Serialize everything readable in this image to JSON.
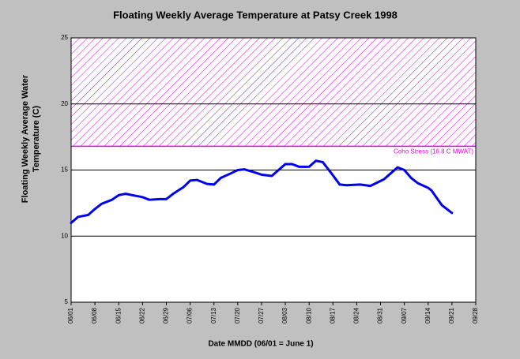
{
  "chart_data": {
    "type": "line",
    "title": "Floating Weekly Average Temperature at Patsy Creek 1998",
    "y_label": [
      "Floating Weekly Average Water",
      "Temperature (C)"
    ],
    "x_label": "Date MMDD (06/01 = June 1)",
    "x": [
      0,
      2,
      5,
      7,
      9,
      12,
      14,
      16,
      19,
      21,
      23,
      26,
      28,
      30,
      33,
      35,
      37,
      40,
      42,
      44,
      47,
      49,
      51,
      53,
      56,
      59,
      63,
      65,
      67,
      70,
      72,
      74,
      77,
      79,
      81,
      85,
      88,
      92,
      94,
      96,
      98,
      100,
      102,
      105,
      106,
      109,
      112
    ],
    "series": [
      {
        "color": "#0000ee",
        "values": [
          11.0,
          11.45,
          11.6,
          12.05,
          12.45,
          12.75,
          13.1,
          13.2,
          13.05,
          12.95,
          12.75,
          12.8,
          12.8,
          13.2,
          13.7,
          14.2,
          14.25,
          13.95,
          13.9,
          14.4,
          14.75,
          15.0,
          15.05,
          14.9,
          14.65,
          14.55,
          15.45,
          15.45,
          15.25,
          15.25,
          15.7,
          15.6,
          14.6,
          13.9,
          13.85,
          13.9,
          13.8,
          14.3,
          14.75,
          15.2,
          15.0,
          14.4,
          14.0,
          13.65,
          13.45,
          12.35,
          11.75
        ]
      }
    ],
    "threshold": {
      "value": 16.8,
      "label": "Coho Stress (16.8 C MWAT)",
      "color": "#ee00ee"
    },
    "xlim": [
      0,
      119
    ],
    "xticks": [
      {
        "value": 0,
        "label": "06/01"
      },
      {
        "value": 7,
        "label": "06/08"
      },
      {
        "value": 14,
        "label": "06/15"
      },
      {
        "value": 21,
        "label": "06/22"
      },
      {
        "value": 28,
        "label": "06/29"
      },
      {
        "value": 35,
        "label": "07/06"
      },
      {
        "value": 42,
        "label": "07/13"
      },
      {
        "value": 49,
        "label": "07/20"
      },
      {
        "value": 56,
        "label": "07/27"
      },
      {
        "value": 63,
        "label": "08/03"
      },
      {
        "value": 70,
        "label": "08/10"
      },
      {
        "value": 77,
        "label": "08/17"
      },
      {
        "value": 84,
        "label": "08/24"
      },
      {
        "value": 91,
        "label": "08/31"
      },
      {
        "value": 98,
        "label": "09/07"
      },
      {
        "value": 105,
        "label": "09/14"
      },
      {
        "value": 112,
        "label": "09/21"
      },
      {
        "value": 119,
        "label": "09/28"
      }
    ],
    "ylim": [
      5,
      25
    ],
    "yticks": [
      5,
      10,
      15,
      20,
      25
    ],
    "grid": true
  }
}
